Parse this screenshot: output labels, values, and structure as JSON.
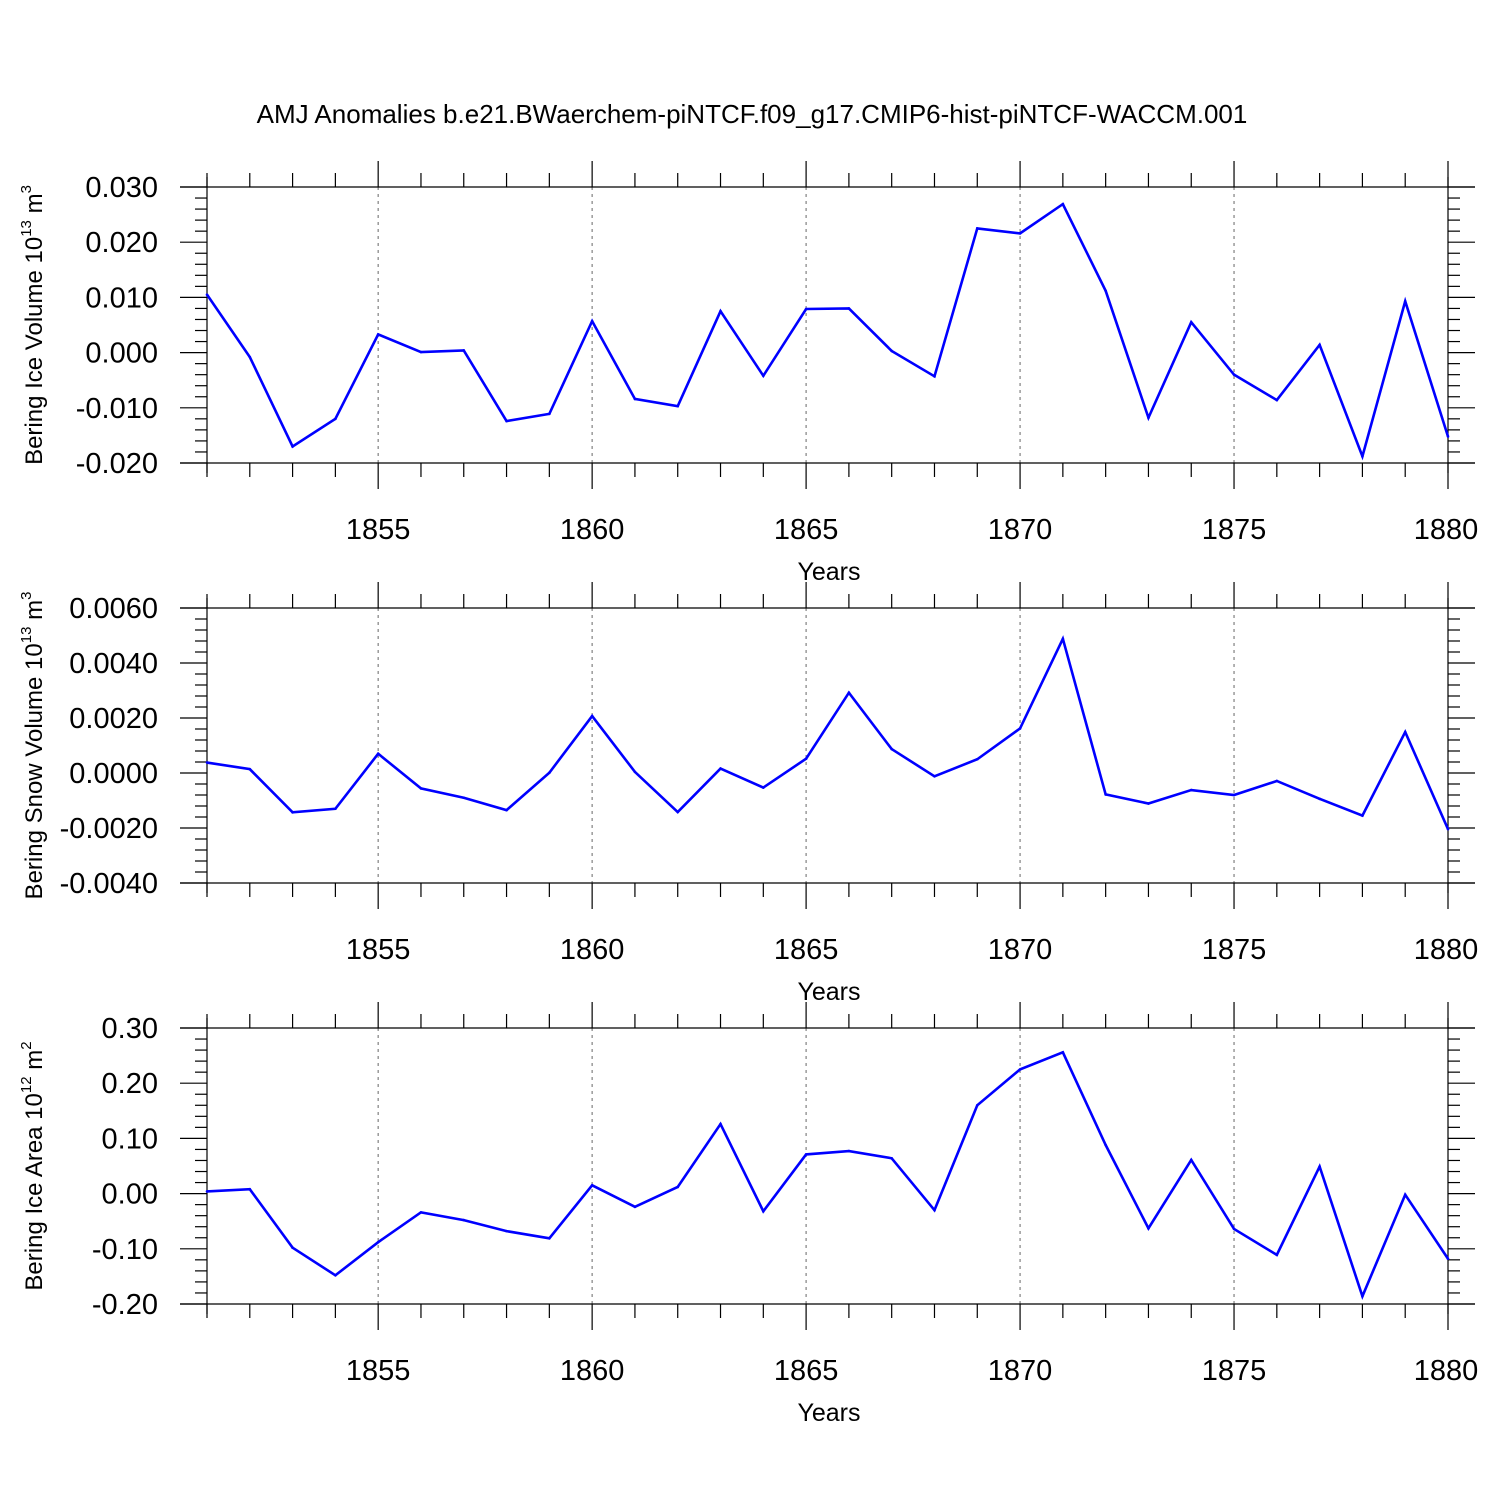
{
  "title": "AMJ Anomalies b.e21.BWaerchem-piNTCF.f09_g17.CMIP6-hist-piNTCF-WACCM.001",
  "chart_data": [
    {
      "type": "line",
      "title": "",
      "xlabel": "Years",
      "ylabel_parts": [
        "Bering Ice Volume 10",
        "13",
        " m",
        "3"
      ],
      "xlim": [
        1851,
        1880
      ],
      "ylim": [
        -0.02,
        0.03
      ],
      "yticks": [
        -0.02,
        -0.01,
        0.0,
        0.01,
        0.02,
        0.03
      ],
      "ytick_labels": [
        "-0.020",
        "-0.010",
        "0.000",
        "0.010",
        "0.020",
        "0.030"
      ],
      "xticks": [
        1855,
        1860,
        1865,
        1870,
        1875,
        1880
      ],
      "xtick_labels": [
        "1855",
        "1860",
        "1865",
        "1870",
        "1875",
        "1880"
      ],
      "color": "#0000ff",
      "x": [
        1851,
        1852,
        1853,
        1854,
        1855,
        1856,
        1857,
        1858,
        1859,
        1860,
        1861,
        1862,
        1863,
        1864,
        1865,
        1866,
        1867,
        1868,
        1869,
        1870,
        1871,
        1872,
        1873,
        1874,
        1875,
        1876,
        1877,
        1878,
        1879,
        1880
      ],
      "y": [
        0.0105,
        -0.0008,
        -0.017,
        -0.012,
        0.0033,
        0.0001,
        0.0004,
        -0.0124,
        -0.0111,
        0.0057,
        -0.0084,
        -0.0097,
        0.0075,
        -0.0042,
        0.0079,
        0.008,
        0.0003,
        -0.0043,
        0.0225,
        0.0216,
        0.0269,
        0.0112,
        -0.0118,
        0.0055,
        -0.004,
        -0.0086,
        0.0014,
        -0.0188,
        0.0093,
        -0.0152
      ]
    },
    {
      "type": "line",
      "title": "",
      "xlabel": "Years",
      "ylabel_parts": [
        "Bering Snow Volume 10",
        "13",
        " m",
        "3"
      ],
      "xlim": [
        1851,
        1880
      ],
      "ylim": [
        -0.004,
        0.006
      ],
      "yticks": [
        -0.004,
        -0.002,
        0.0,
        0.002,
        0.004,
        0.006
      ],
      "ytick_labels": [
        "-0.0040",
        "-0.0020",
        "0.0000",
        "0.0020",
        "0.0040",
        "0.0060"
      ],
      "xticks": [
        1855,
        1860,
        1865,
        1870,
        1875,
        1880
      ],
      "xtick_labels": [
        "1855",
        "1860",
        "1865",
        "1870",
        "1875",
        "1880"
      ],
      "color": "#0000ff",
      "x": [
        1851,
        1852,
        1853,
        1854,
        1855,
        1856,
        1857,
        1858,
        1859,
        1860,
        1861,
        1862,
        1863,
        1864,
        1865,
        1866,
        1867,
        1868,
        1869,
        1870,
        1871,
        1872,
        1873,
        1874,
        1875,
        1876,
        1877,
        1878,
        1879,
        1880
      ],
      "y": [
        0.00038,
        0.00014,
        -0.00143,
        -0.0013,
        0.0007,
        -0.00056,
        -0.0009,
        -0.00135,
        1e-05,
        0.00207,
        4e-05,
        -0.00142,
        0.00016,
        -0.00053,
        0.00052,
        0.00292,
        0.00087,
        -0.00012,
        0.0005,
        0.00162,
        0.00488,
        -0.00078,
        -0.00111,
        -0.00062,
        -0.0008,
        -0.00029,
        -0.00094,
        -0.00155,
        0.00149,
        -0.00204
      ]
    },
    {
      "type": "line",
      "title": "",
      "xlabel": "Years",
      "ylabel_parts": [
        "Bering Ice Area 10",
        "12",
        " m",
        "2"
      ],
      "xlim": [
        1851,
        1880
      ],
      "ylim": [
        -0.2,
        0.3
      ],
      "yticks": [
        -0.2,
        -0.1,
        0.0,
        0.1,
        0.2,
        0.3
      ],
      "ytick_labels": [
        "-0.20",
        "-0.10",
        "0.00",
        "0.10",
        "0.20",
        "0.30"
      ],
      "xticks": [
        1855,
        1860,
        1865,
        1870,
        1875,
        1880
      ],
      "xtick_labels": [
        "1855",
        "1860",
        "1865",
        "1870",
        "1875",
        "1880"
      ],
      "color": "#0000ff",
      "x": [
        1851,
        1852,
        1853,
        1854,
        1855,
        1856,
        1857,
        1858,
        1859,
        1860,
        1861,
        1862,
        1863,
        1864,
        1865,
        1866,
        1867,
        1868,
        1869,
        1870,
        1871,
        1872,
        1873,
        1874,
        1875,
        1876,
        1877,
        1878,
        1879,
        1880
      ],
      "y": [
        0.004,
        0.008,
        -0.098,
        -0.148,
        -0.088,
        -0.034,
        -0.048,
        -0.068,
        -0.081,
        0.015,
        -0.024,
        0.012,
        0.126,
        -0.032,
        0.071,
        0.077,
        0.064,
        -0.03,
        0.16,
        0.225,
        0.256,
        0.088,
        -0.063,
        0.061,
        -0.064,
        -0.111,
        0.049,
        -0.186,
        -0.002,
        -0.118
      ]
    }
  ]
}
